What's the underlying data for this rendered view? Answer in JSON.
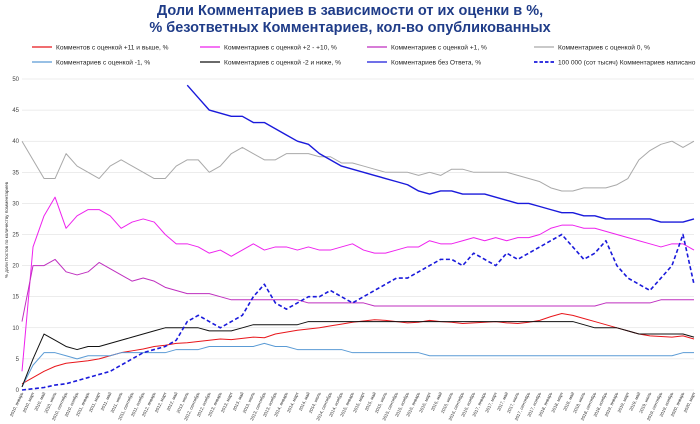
{
  "chart_data": {
    "type": "line",
    "title_lines": [
      "Доли Комментариев в зависимости от их оценки в %,",
      "% безответных Комментариев, кол-во опубликованных"
    ],
    "ylabel": "% доли Постов по количеству Комментариев",
    "ylim": [
      0,
      50
    ],
    "yticks": [
      0,
      5,
      10,
      15,
      20,
      25,
      30,
      35,
      40,
      45,
      50
    ],
    "grid": true,
    "legend_position": "top",
    "x_labels": [
      "2010, январь",
      "2010, март",
      "2010, май",
      "2010, июль",
      "2010, сентябрь",
      "2010, ноябрь",
      "2011, январь",
      "2011, март",
      "2011, май",
      "2011, июль",
      "2011, сентябрь",
      "2011, ноябрь",
      "2012, январь",
      "2012, март",
      "2012, май",
      "2012, июль",
      "2012, сентябрь",
      "2012, ноябрь",
      "2013, январь",
      "2013, март",
      "2013, май",
      "2013, июль",
      "2013, сентябрь",
      "2013, ноябрь",
      "2014, январь",
      "2014, март",
      "2014, май",
      "2014, июль",
      "2014, сентябрь",
      "2014, ноябрь",
      "2015, январь",
      "2015, март",
      "2015, май",
      "2015, июль",
      "2015, сентябрь",
      "2015, ноябрь",
      "2016, январь",
      "2016, март",
      "2016, май",
      "2016, июль",
      "2016, сентябрь",
      "2016, ноябрь",
      "2017, январь",
      "2017, март",
      "2017, май",
      "2017, июль",
      "2017, сентябрь",
      "2017, ноябрь",
      "2018, январь",
      "2018, март",
      "2018, май",
      "2018, июль",
      "2018, сентябрь",
      "2018, ноябрь",
      "2019, январь",
      "2019, март",
      "2019, май",
      "2019, июль",
      "2019, сентябрь",
      "2019, ноябрь",
      "2020, январь",
      "2020, март"
    ],
    "series": [
      {
        "name": "Комментов с оценкой +11 и выше, %",
        "color": "#e8161b",
        "dash": false,
        "width": 1.0,
        "values": [
          1,
          2,
          3,
          3.8,
          4.3,
          4.5,
          4.7,
          5.0,
          5.5,
          6.0,
          6.3,
          6.6,
          7.0,
          7.2,
          7.5,
          7.6,
          7.8,
          8.0,
          8.2,
          8.1,
          8.3,
          8.5,
          8.4,
          9.0,
          9.3,
          9.6,
          9.8,
          10.0,
          10.3,
          10.6,
          10.9,
          11.1,
          11.3,
          11.2,
          11.0,
          10.8,
          10.9,
          11.2,
          11.0,
          10.9,
          10.7,
          10.8,
          10.9,
          11.0,
          10.8,
          10.7,
          10.9,
          11.2,
          11.8,
          12.3,
          12.0,
          11.5,
          11.0,
          10.5,
          10.0,
          9.5,
          9.0,
          8.7,
          8.6,
          8.5,
          8.7,
          8.2
        ]
      },
      {
        "name": "Комментариев с оценкой +2 - +10, %",
        "color": "#ee22ee",
        "dash": false,
        "width": 1.0,
        "values": [
          3,
          23,
          28,
          31,
          26,
          28,
          29,
          29,
          28,
          26,
          27,
          27.5,
          27,
          25,
          23.5,
          23.5,
          23,
          22,
          22.5,
          21.5,
          22.5,
          23.5,
          22.5,
          23,
          23,
          22.5,
          23,
          22.5,
          22.5,
          23,
          23.5,
          22.5,
          22,
          22,
          22.5,
          23,
          23,
          24,
          23.5,
          23.5,
          24,
          24.5,
          24,
          24.5,
          24,
          24.5,
          24.5,
          25,
          26,
          26.5,
          26.5,
          26,
          26,
          25.5,
          25,
          24.5,
          24,
          23.5,
          23,
          23.5,
          23.5,
          22.5
        ]
      },
      {
        "name": "Комментариев с оценкой +1, %",
        "color": "#bf2fbf",
        "dash": false,
        "width": 1.0,
        "values": [
          11,
          20,
          20,
          21,
          19,
          18.5,
          19,
          20.5,
          19.5,
          18.5,
          17.5,
          18,
          17.5,
          16.5,
          16,
          15.5,
          15.5,
          15.5,
          15,
          14.5,
          14.5,
          14.5,
          14.5,
          14.5,
          14.5,
          14.5,
          14,
          14,
          14,
          14,
          14,
          14,
          13.5,
          13.5,
          13.5,
          13.5,
          13.5,
          13.5,
          13.5,
          13.5,
          13.5,
          13.5,
          13.5,
          13.5,
          13.5,
          13.5,
          13.5,
          13.5,
          13.5,
          13.5,
          13.5,
          13.5,
          13.5,
          14,
          14,
          14,
          14,
          14,
          14.5,
          14.5,
          14.5,
          14.5
        ]
      },
      {
        "name": "Комментариев с оценкой 0, %",
        "color": "#a9a9a9",
        "dash": false,
        "width": 1.0,
        "values": [
          40,
          37,
          34,
          34,
          38,
          36,
          35,
          34,
          36,
          37,
          36,
          35,
          34,
          34,
          36,
          37,
          37,
          35,
          36,
          38,
          39,
          38,
          37,
          37,
          38,
          38,
          38,
          37.5,
          37.5,
          36.5,
          36.5,
          36,
          35.5,
          35,
          35,
          35,
          34.5,
          35,
          34.5,
          35.5,
          35.5,
          35,
          35,
          35,
          35,
          34.5,
          34,
          33.5,
          32.5,
          32,
          32,
          32.5,
          32.5,
          32.5,
          33,
          34,
          37,
          38.5,
          39.5,
          40,
          39,
          40
        ]
      },
      {
        "name": "Комментариев с оценкой -1, %",
        "color": "#5b9bd5",
        "dash": false,
        "width": 1.0,
        "values": [
          0.5,
          4,
          6,
          6,
          5.5,
          5,
          5.5,
          5.5,
          5.5,
          6,
          6,
          6,
          6,
          6,
          6.5,
          6.5,
          6.5,
          7,
          7,
          7,
          7,
          7,
          7.5,
          7,
          7,
          6.5,
          6.5,
          6.5,
          6.5,
          6.5,
          6,
          6,
          6,
          6,
          6,
          6,
          6,
          5.5,
          5.5,
          5.5,
          5.5,
          5.5,
          5.5,
          5.5,
          5.5,
          5.5,
          5.5,
          5.5,
          5.5,
          5.5,
          5.5,
          5.5,
          5.5,
          5.5,
          5.5,
          5.5,
          5.5,
          5.5,
          5.5,
          5.5,
          6,
          6
        ]
      },
      {
        "name": "Комментариев с оценкой -2 и ниже, %",
        "color": "#111111",
        "dash": false,
        "width": 1.0,
        "values": [
          0.5,
          5,
          9,
          8,
          7,
          6.5,
          7,
          7,
          7.5,
          8,
          8.5,
          9,
          9.5,
          10,
          10,
          10,
          10,
          9.5,
          9.5,
          9.5,
          10,
          10.5,
          10.5,
          10.5,
          10.5,
          10.5,
          11,
          11,
          11,
          11,
          11,
          11,
          11,
          11,
          11,
          11,
          11,
          11,
          11,
          11,
          11,
          11,
          11,
          11,
          11,
          11,
          11,
          11,
          11,
          11,
          11,
          10.5,
          10,
          10,
          10,
          9.5,
          9,
          9,
          9,
          9,
          9,
          8.5
        ]
      },
      {
        "name": "Комментариев без Ответа, %",
        "color": "#1a1adb",
        "dash": false,
        "width": 1.4,
        "values": [
          null,
          null,
          null,
          null,
          null,
          null,
          null,
          null,
          null,
          null,
          null,
          null,
          null,
          null,
          null,
          49,
          47,
          45,
          44.5,
          44,
          44,
          43,
          43,
          42,
          41,
          40,
          39.5,
          38,
          37,
          36,
          35.5,
          35,
          34.5,
          34,
          33.5,
          33,
          32,
          31.5,
          32,
          32,
          31.5,
          31.5,
          31.5,
          31,
          30.5,
          30,
          30,
          29.5,
          29,
          28.5,
          28.5,
          28,
          28,
          27.5,
          27.5,
          27.5,
          27.5,
          27.5,
          27,
          27,
          27,
          27.5
        ]
      },
      {
        "name": "100 000 (сот тысяч) Комментариев написано",
        "color": "#1a1adb",
        "dash": true,
        "width": 1.6,
        "values": [
          0,
          0.2,
          0.4,
          0.8,
          1,
          1.5,
          2,
          2.5,
          3,
          4,
          5,
          6,
          6.5,
          7,
          8,
          11,
          12,
          11,
          10,
          11,
          12,
          15,
          17,
          14,
          13,
          14,
          15,
          15,
          16,
          15,
          14,
          15,
          16,
          17,
          18,
          18,
          19,
          20,
          21,
          21,
          20,
          22,
          21,
          20,
          22,
          21,
          22,
          23,
          24,
          25,
          23,
          21,
          22,
          24,
          20,
          18,
          17,
          16,
          18,
          20,
          25,
          17
        ]
      }
    ]
  }
}
